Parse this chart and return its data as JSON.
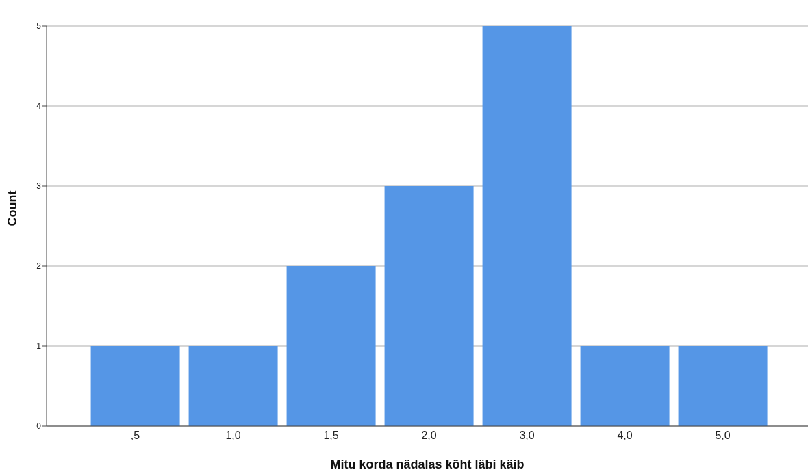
{
  "chart_data": {
    "type": "bar",
    "xlabel": "Mitu korda nädalas kõht läbi käib",
    "ylabel": "Count",
    "categories": [
      ",5",
      "1,0",
      "1,5",
      "2,0",
      "3,0",
      "4,0",
      "5,0"
    ],
    "values": [
      1,
      1,
      2,
      3,
      5,
      1,
      1
    ],
    "color": "#5596e6",
    "ylim": [
      0,
      5
    ],
    "yticks": [
      0,
      1,
      2,
      3,
      4,
      5
    ],
    "grid": "y"
  }
}
